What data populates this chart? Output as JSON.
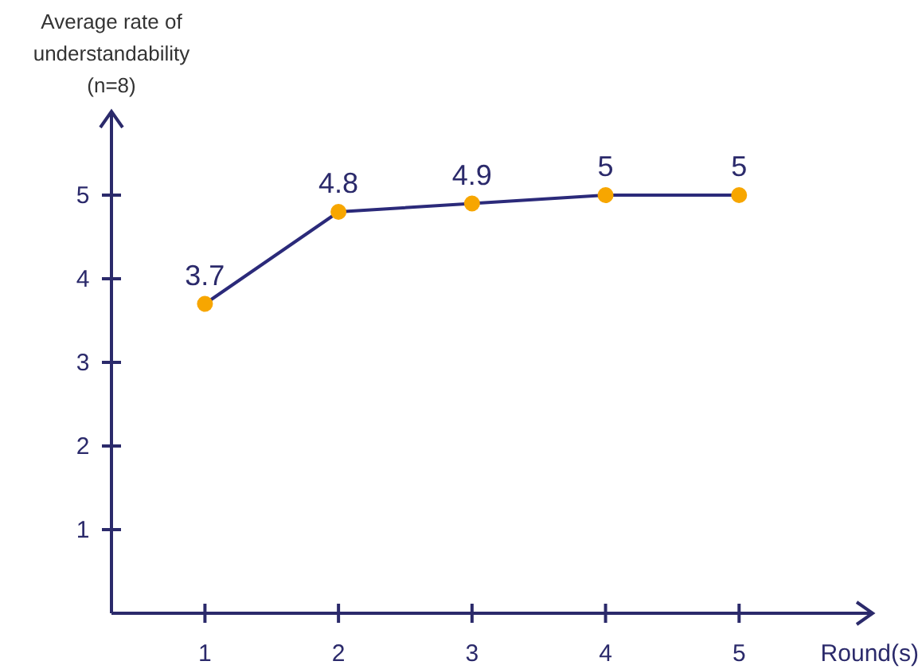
{
  "chart_data": {
    "type": "line",
    "x": [
      1,
      2,
      3,
      4,
      5
    ],
    "series": [
      {
        "color": "#2b2a7a",
        "colors": [
          "#f7a600",
          "#f7a600",
          "#f7a600",
          "#f7a600",
          "#f7a600"
        ],
        "values": [
          3.7,
          4.8,
          4.9,
          5,
          5
        ]
      }
    ],
    "xlim": [
      0.3,
      6
    ],
    "ylim": [
      0,
      6
    ],
    "xticks": [
      1,
      2,
      3,
      4,
      5
    ],
    "yticks": [
      1,
      2,
      3,
      4,
      5
    ],
    "xlabel": "Round(s)",
    "ylabel": "Average rate of\nunderstandability\n(n=8)",
    "marker": "circle",
    "line_style": "solid",
    "grid": false,
    "data_labels": true
  }
}
